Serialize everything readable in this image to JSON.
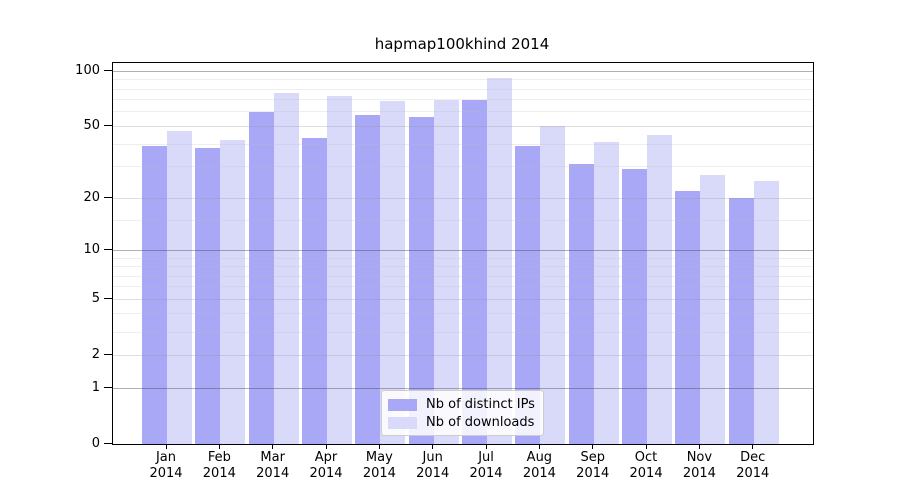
{
  "chart_data": {
    "type": "bar",
    "title": "hapmap100khind 2014",
    "categories": [
      "Jan 2014",
      "Feb 2014",
      "Mar 2014",
      "Apr 2014",
      "May 2014",
      "Jun 2014",
      "Jul 2014",
      "Aug 2014",
      "Sep 2014",
      "Oct 2014",
      "Nov 2014",
      "Dec 2014"
    ],
    "month_labels": [
      "Jan",
      "Feb",
      "Mar",
      "Apr",
      "May",
      "Jun",
      "Jul",
      "Aug",
      "Sep",
      "Oct",
      "Nov",
      "Dec"
    ],
    "year_label": "2014",
    "series": [
      {
        "name": "Nb of distinct IPs",
        "color": "#a8a8f7",
        "values": [
          39,
          38,
          60,
          43,
          58,
          56,
          70,
          39,
          31,
          29,
          22,
          20
        ]
      },
      {
        "name": "Nb of downloads",
        "color": "#d9d9f9",
        "values": [
          47,
          42,
          76,
          73,
          69,
          70,
          92,
          50,
          41,
          45,
          27,
          25
        ]
      }
    ],
    "y_axis": {
      "scale": "log(1+x)",
      "tick_values": [
        0,
        1,
        2,
        5,
        10,
        20,
        50,
        100
      ],
      "tick_labels": [
        "0",
        "1",
        "2",
        "5",
        "10",
        "20",
        "50",
        "100"
      ],
      "range": [
        0,
        112
      ]
    },
    "grid": {
      "on": true,
      "major_values": [
        1,
        10,
        100
      ],
      "mid_values": [
        2,
        5,
        20,
        50
      ],
      "minor_values": [
        3,
        4,
        6,
        7,
        8,
        9,
        15,
        30,
        40,
        60,
        70,
        80,
        90
      ]
    },
    "legend": {
      "position": "bottom-center",
      "entries": [
        {
          "label": "Nb of distinct IPs",
          "color": "#a8a8f7"
        },
        {
          "label": "Nb of downloads",
          "color": "#d9d9f9"
        }
      ]
    },
    "xlabel": "",
    "ylabel": ""
  }
}
